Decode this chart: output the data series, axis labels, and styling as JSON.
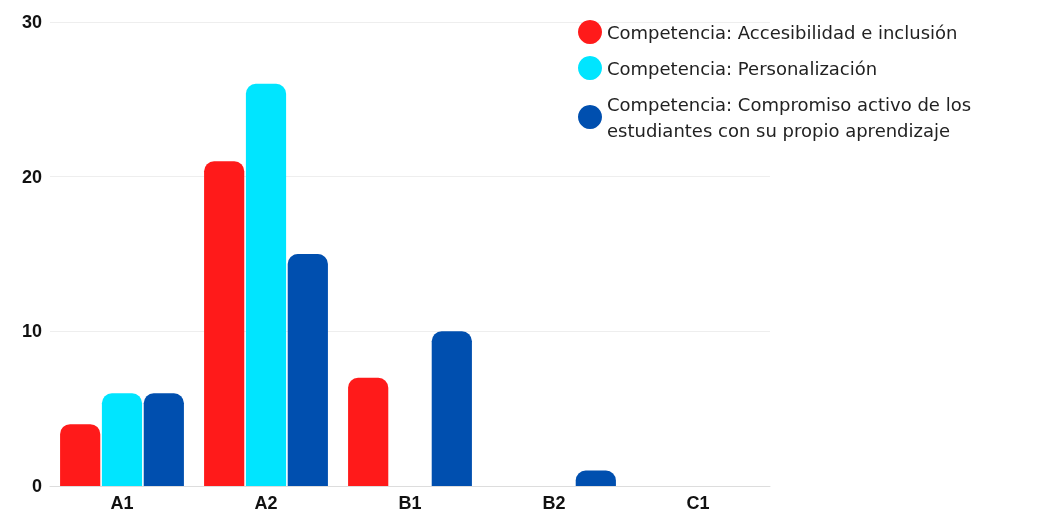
{
  "chart_data": {
    "type": "bar",
    "categories": [
      "A1",
      "A2",
      "B1",
      "B2",
      "C1"
    ],
    "series": [
      {
        "name": "Competencia: Accesibilidad e inclusión",
        "color": "#ff1a1a",
        "values": [
          4,
          21,
          7,
          0,
          0
        ]
      },
      {
        "name": "Competencia: Personalización",
        "color": "#00e5ff",
        "values": [
          6,
          26,
          0,
          0,
          0
        ]
      },
      {
        "name": "Competencia: Compromiso activo de los estudiantes con su propio aprendizaje",
        "color": "#004faf",
        "values": [
          6,
          15,
          10,
          1,
          0
        ]
      }
    ],
    "ylim": [
      0,
      30
    ],
    "yticks": [
      0,
      10,
      20,
      30
    ],
    "grid": "y",
    "legend": "top right"
  }
}
